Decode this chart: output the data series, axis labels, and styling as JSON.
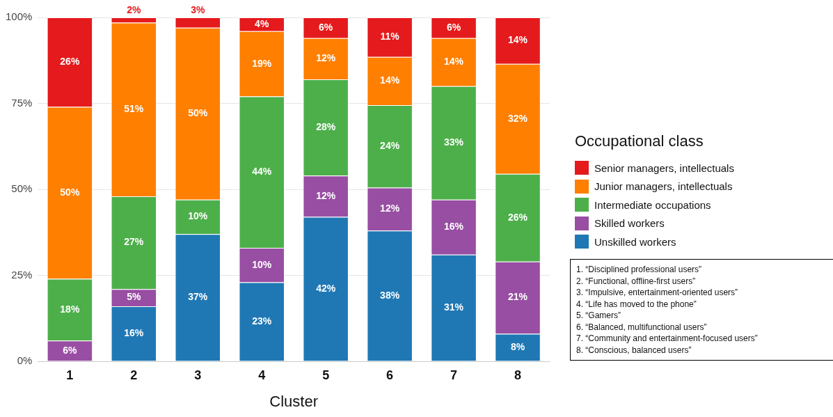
{
  "chart_data": {
    "type": "bar",
    "stacked": true,
    "xlabel": "Cluster",
    "legend_title": "Occupational class",
    "legend": "right",
    "categories": [
      "1",
      "2",
      "3",
      "4",
      "5",
      "6",
      "7",
      "8"
    ],
    "ylim": [
      0,
      100
    ],
    "yticks": [
      {
        "value": 0,
        "label": "0%"
      },
      {
        "value": 25,
        "label": "25%"
      },
      {
        "value": 50,
        "label": "50%"
      },
      {
        "value": 75,
        "label": "75%"
      },
      {
        "value": 100,
        "label": "100%"
      }
    ],
    "grid": "y",
    "series": [
      {
        "name": "Unskilled workers",
        "color": "#1f78b4",
        "values": [
          0,
          16,
          37,
          23,
          42,
          38,
          31,
          8
        ],
        "value_labels": [
          null,
          "16%",
          "37%",
          "23%",
          "42%",
          "38%",
          "31%",
          "8%"
        ]
      },
      {
        "name": "Skilled workers",
        "color": "#984ea3",
        "values": [
          6,
          5,
          0,
          10,
          12,
          12.5,
          16,
          21
        ],
        "value_labels": [
          "6%",
          "5%",
          null,
          "10%",
          "12%",
          "12%",
          "16%",
          "21%"
        ]
      },
      {
        "name": "Intermediate occupations",
        "color": "#4daf4a",
        "values": [
          18,
          27,
          10,
          44,
          28,
          24,
          33,
          25.5
        ],
        "value_labels": [
          "18%",
          "27%",
          "10%",
          "44%",
          "28%",
          "24%",
          "33%",
          "26%"
        ]
      },
      {
        "name": "Junior managers, intellectuals",
        "color": "#ff7f00",
        "values": [
          50,
          50.5,
          50,
          19,
          12,
          14,
          14,
          32
        ],
        "value_labels": [
          "50%",
          "51%",
          "50%",
          "19%",
          "12%",
          "14%",
          "14%",
          "32%"
        ]
      },
      {
        "name": "Senior managers, intellectuals",
        "color": "#e41a1c",
        "values": [
          26,
          1.5,
          3,
          4,
          6,
          11.5,
          6,
          13.5
        ],
        "value_labels": [
          "26%",
          "2%",
          "3%",
          "4%",
          "6%",
          "11%",
          "6%",
          "14%"
        ]
      }
    ],
    "annotations": [
      "1.  “Disciplined professional users”",
      "2.  “Functional, offline-first users”",
      "3.  “Impulsive, entertainment-oriented users”",
      "4.  “Life has moved to the phone”",
      "5.  “Gamers”",
      "6.  “Balanced, multifunctional users”",
      "7.  “Community and entertainment-focused users”",
      "8.  “Conscious, balanced users”"
    ]
  }
}
